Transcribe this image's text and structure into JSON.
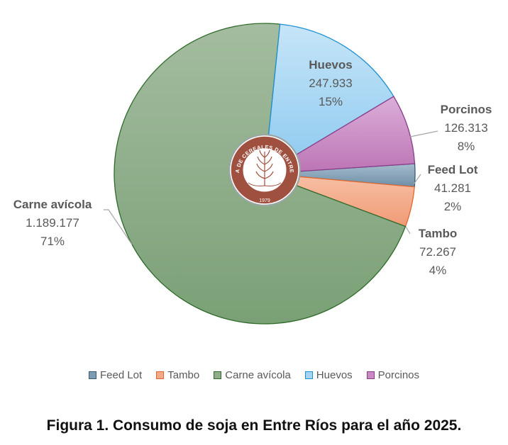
{
  "chart_data": {
    "type": "pie",
    "title": "",
    "slices": [
      {
        "name": "Feed Lot",
        "value": 41281,
        "value_label": "41.281",
        "percent_label": "2%",
        "color": "#7f9db2",
        "border": "#3a5b76"
      },
      {
        "name": "Tambo",
        "value": 72267,
        "value_label": "72.267",
        "percent_label": "4%",
        "color": "#f4a98a",
        "border": "#e0692f"
      },
      {
        "name": "Carne avícola",
        "value": 1189177,
        "value_label": "1.189.177",
        "percent_label": "71%",
        "color": "#8fab8a",
        "border": "#2e6b2a"
      },
      {
        "name": "Huevos",
        "value": 247933,
        "value_label": "247.933",
        "percent_label": "15%",
        "color": "#a6d5f3",
        "border": "#1e90d0"
      },
      {
        "name": "Porcinos",
        "value": 126313,
        "value_label": "126.313",
        "percent_label": "8%",
        "color": "#c98ac3",
        "border": "#8b3d8a"
      }
    ],
    "legend_position": "bottom"
  },
  "logo": {
    "text_top": "BOLSA DE CEREALES DE ENTRE RÍOS",
    "year": "1979",
    "color": "#a0503f"
  },
  "caption": "Figura 1. Consumo de soja en Entre Ríos para el año 2025."
}
